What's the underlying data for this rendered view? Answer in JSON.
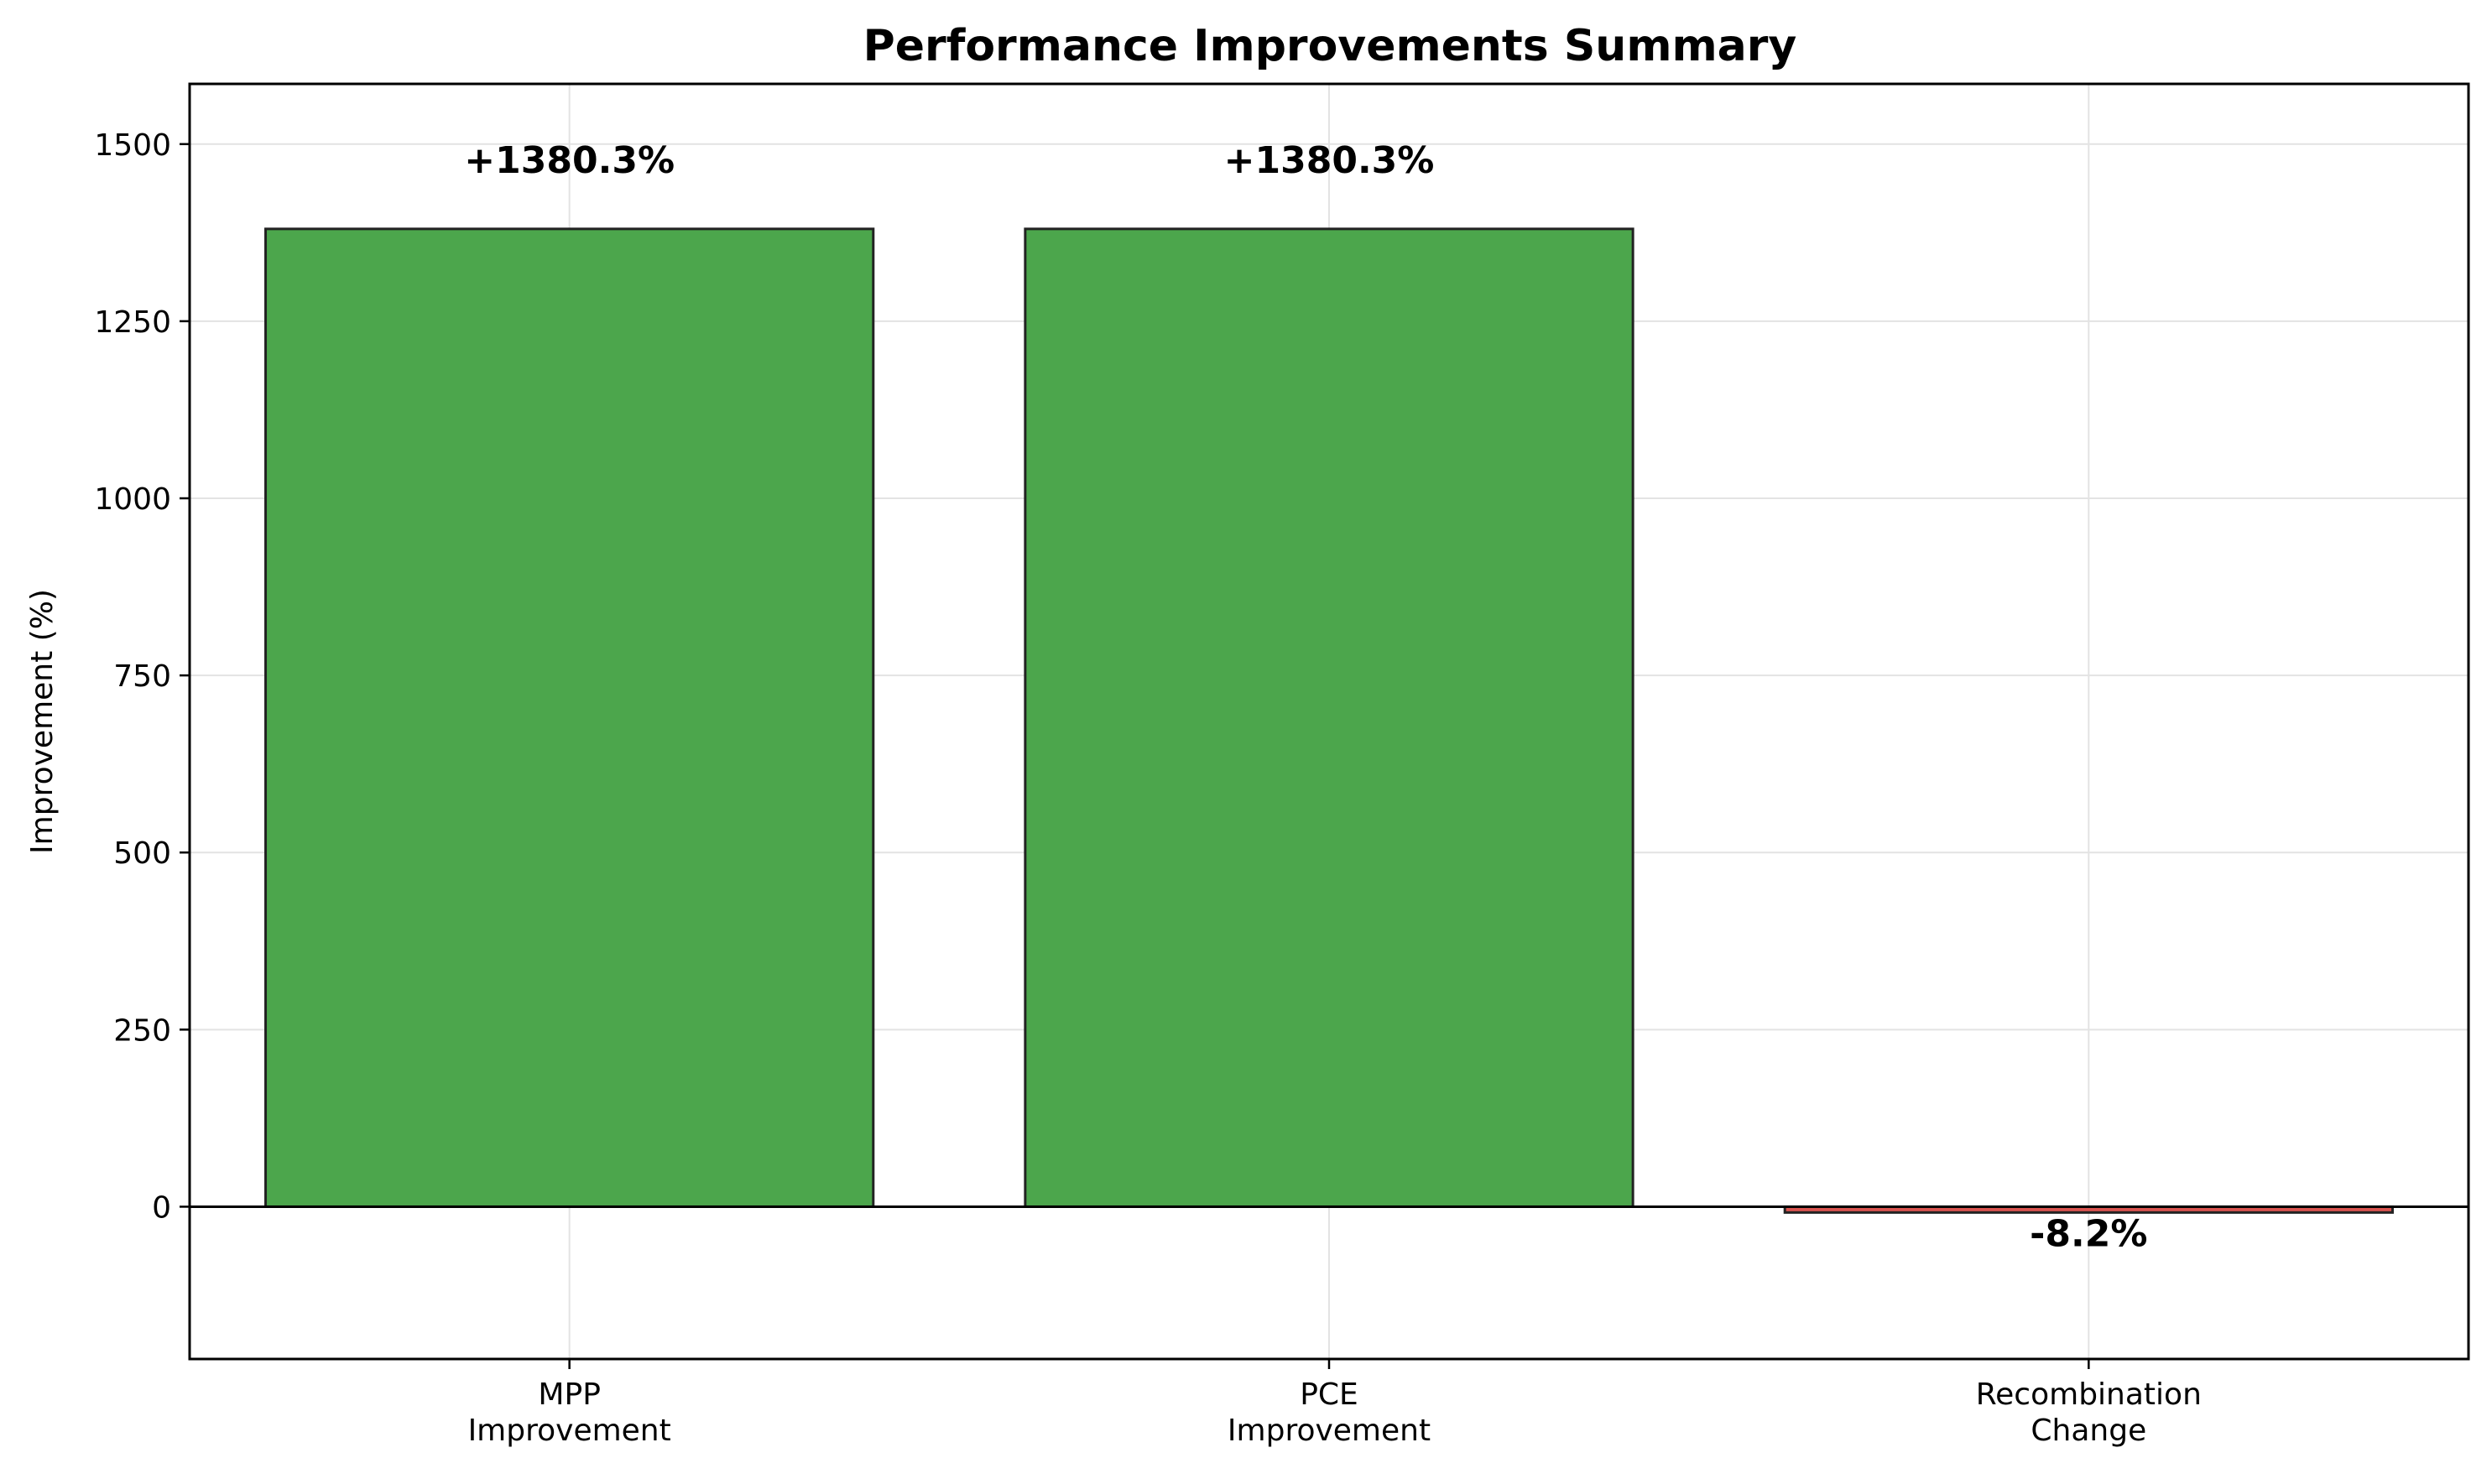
{
  "chart_data": {
    "type": "bar",
    "title": "Performance Improvements Summary",
    "xlabel": "",
    "ylabel": "Improvement (%)",
    "categories": [
      [
        "MPP",
        "Improvement"
      ],
      [
        "PCE",
        "Improvement"
      ],
      [
        "Recombination",
        "Change"
      ]
    ],
    "values": [
      1380.3,
      1380.3,
      -8.2
    ],
    "value_labels": [
      "+1380.3%",
      "+1380.3%",
      "-8.2%"
    ],
    "bar_colors": [
      "#4ca64c",
      "#4ca64c",
      "#d9534f"
    ],
    "edge_color": "#222222",
    "ylim": [
      -215,
      1585
    ],
    "yticks": [
      0,
      250,
      500,
      750,
      1000,
      1250,
      1500
    ],
    "ytick_labels": [
      "0",
      "250",
      "500",
      "750",
      "1000",
      "1250",
      "1500"
    ],
    "grid": true,
    "zero_line": true
  }
}
